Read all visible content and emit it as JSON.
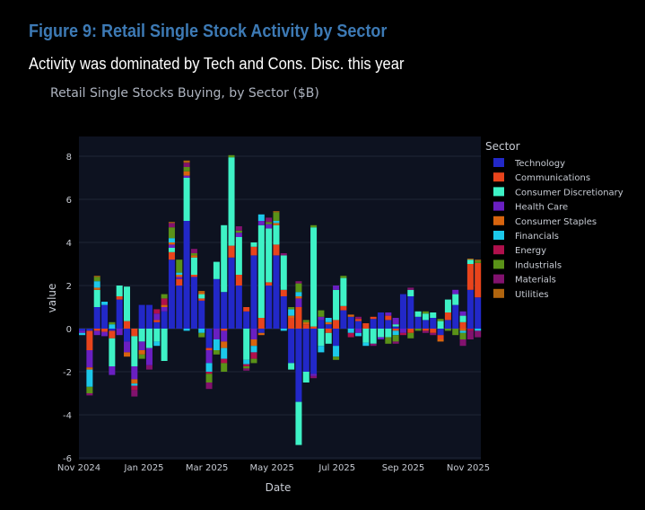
{
  "figure_title": "Figure 9: Retail Single Stock Activity by Sector",
  "figure_subtitle": "Activity was dominated by Tech and Cons. Disc. this year",
  "chart_data": {
    "type": "bar",
    "barmode": "relative",
    "title": "Retail Single Stocks Buying, by Sector ($B)",
    "xlabel": "Date",
    "ylabel": "value",
    "ylim": [
      -6.1,
      8.9
    ],
    "yticks": [
      -6,
      -4,
      -2,
      0,
      2,
      4,
      6,
      8
    ],
    "xticks": [
      {
        "date": "2024-11-01",
        "label": "Nov 2024"
      },
      {
        "date": "2025-01-01",
        "label": "Jan 2025"
      },
      {
        "date": "2025-03-01",
        "label": "Mar 2025"
      },
      {
        "date": "2025-05-01",
        "label": "May 2025"
      },
      {
        "date": "2025-07-01",
        "label": "Jul 2025"
      },
      {
        "date": "2025-09-01",
        "label": "Sep 2025"
      },
      {
        "date": "2025-11-01",
        "label": "Nov 2025"
      }
    ],
    "x_start": "2024-11-04",
    "x_step_days": 7,
    "grid": true,
    "legend_title": "Sector",
    "legend_position": "right",
    "series": [
      {
        "name": "Technology",
        "color": "#2228c8",
        "values": [
          -0.1,
          -0.1,
          1.0,
          1.1,
          -0.1,
          1.35,
          -0.6,
          0,
          1.1,
          1.1,
          0.3,
          0.8,
          3.2,
          2.0,
          5.0,
          2.4,
          1.3,
          -0.9,
          2.3,
          1.7,
          3.3,
          2.0,
          0.8,
          3.4,
          -0.2,
          2.0,
          3.4,
          1.5,
          -1.6,
          -3.4,
          -2.0,
          -2.1,
          0.4,
          0.2,
          -0.8,
          0.85,
          0.55,
          0.35,
          0,
          0.45,
          0.75,
          0.4,
          0.1,
          1.6,
          1.5,
          0.55,
          0.4,
          0.5,
          -0.3,
          0.4,
          1.1,
          0,
          1.8,
          1.45
        ]
      },
      {
        "name": "Communications",
        "color": "#e8441c",
        "values": [
          0,
          -0.9,
          -0.1,
          -0.15,
          -0.35,
          0.15,
          0.35,
          -0.35,
          0,
          0,
          0.1,
          0,
          0.35,
          0.3,
          0,
          0.1,
          0.1,
          -0.1,
          0,
          -0.1,
          0.55,
          0.5,
          0.2,
          0.4,
          0.5,
          0.15,
          0.5,
          0.3,
          0.5,
          1.0,
          0.2,
          0.1,
          0,
          -0.2,
          0.4,
          0.2,
          0,
          0.1,
          0.25,
          0.1,
          0,
          0.2,
          -0.1,
          0,
          -0.2,
          0,
          -0.1,
          -0.2,
          -0.2,
          0.35,
          0,
          0.3,
          1.2,
          1.6
        ]
      },
      {
        "name": "Consumer Discretionary",
        "color": "#3ef2c6",
        "values": [
          0,
          0,
          0.8,
          0,
          -1.3,
          0.5,
          1.6,
          -1.4,
          -0.6,
          -0.9,
          -0.6,
          -1.5,
          0.2,
          0,
          2.0,
          0.8,
          0.2,
          0,
          0.8,
          3.1,
          4.1,
          1.75,
          -1.45,
          0.2,
          4.3,
          2.5,
          0.9,
          1.6,
          -0.3,
          -2.0,
          -0.5,
          4.6,
          -0.8,
          -0.5,
          1.4,
          1.3,
          0,
          0,
          -0.65,
          -0.7,
          -0.4,
          -0.4,
          0.1,
          0,
          0.3,
          0.25,
          0.3,
          0.25,
          0.35,
          0.6,
          0.5,
          0.3,
          0.2,
          0
        ]
      },
      {
        "name": "Health Care",
        "color": "#6a1fc2",
        "values": [
          -0.1,
          -0.8,
          -0.2,
          -0.2,
          -0.4,
          -0.3,
          -0.5,
          -0.6,
          -0.4,
          -0.8,
          0.3,
          0.2,
          0.15,
          0.1,
          0.1,
          0,
          0,
          -0.6,
          -0.5,
          -0.5,
          0,
          0.2,
          0,
          -0.5,
          0.2,
          0.2,
          0,
          0,
          0,
          0.4,
          0,
          -0.1,
          0.15,
          0,
          0.2,
          0,
          0,
          -0.2,
          0,
          0,
          -0.1,
          0.15,
          0.3,
          -0.2,
          0,
          0,
          0,
          0,
          0,
          0,
          0.2,
          0.2,
          0,
          0
        ]
      },
      {
        "name": "Consumer Staples",
        "color": "#d8640e",
        "values": [
          0,
          -0.1,
          0.1,
          0,
          0,
          0,
          -0.2,
          -0.2,
          -0.2,
          0,
          0,
          0.1,
          0.1,
          0.1,
          0.2,
          0.1,
          0.1,
          0,
          0,
          -0.3,
          0,
          0,
          0,
          -0.3,
          -0.1,
          0,
          0.1,
          0,
          0.1,
          0.1,
          0.1,
          0,
          0,
          0.1,
          0,
          0,
          0.1,
          0,
          0,
          0,
          0,
          0,
          0,
          0,
          0,
          0,
          0,
          0,
          -0.1,
          0,
          0,
          -0.1,
          0,
          0
        ]
      },
      {
        "name": "Financials",
        "color": "#1cc8ea",
        "values": [
          -0.1,
          -0.8,
          0.3,
          0.15,
          0.2,
          0,
          0,
          -0.1,
          0,
          0,
          -0.2,
          0,
          0.2,
          0.1,
          -0.1,
          0,
          -0.2,
          -0.4,
          -0.5,
          -0.5,
          0,
          0,
          -0.2,
          -0.3,
          0.3,
          0,
          0.1,
          -0.1,
          0.3,
          0.2,
          0,
          0,
          -0.3,
          0.2,
          -0.5,
          0,
          -0.2,
          -0.15,
          -0.15,
          0,
          0,
          0,
          -0.2,
          0,
          0,
          0,
          0,
          0,
          0,
          0,
          0,
          -0.1,
          0,
          -0.1
        ]
      },
      {
        "name": "Energy",
        "color": "#b0104c",
        "values": [
          0,
          0,
          0,
          0,
          0,
          0,
          0,
          -0.2,
          0,
          0,
          0.2,
          0.3,
          0,
          0,
          0,
          0,
          0,
          -0.1,
          0,
          -0.2,
          0,
          0,
          -0.1,
          -0.3,
          0,
          0,
          0,
          0,
          0,
          0,
          0,
          0,
          0,
          0,
          0,
          0,
          -0.2,
          0,
          0,
          0,
          0,
          0,
          0,
          -0.1,
          0,
          0,
          0,
          0,
          0,
          0,
          0,
          0,
          -0.1,
          0
        ]
      },
      {
        "name": "Industrials",
        "color": "#5a9218",
        "values": [
          0,
          -0.3,
          0.2,
          0,
          0.1,
          0,
          0,
          0,
          -0.2,
          0,
          0,
          0.2,
          0.5,
          0.6,
          0.2,
          0.1,
          -0.2,
          -0.4,
          -0.2,
          -0.4,
          0.1,
          0.1,
          -0.1,
          -0.2,
          0,
          0.1,
          0.4,
          0,
          0.1,
          0.4,
          0.1,
          0.1,
          0.3,
          0,
          -0.15,
          0.1,
          0,
          0,
          0,
          0,
          0,
          -0.3,
          -0.3,
          0,
          -0.25,
          -0.1,
          0.1,
          0,
          0.1,
          -0.1,
          -0.3,
          -0.3,
          0,
          0.1
        ]
      },
      {
        "name": "Materials",
        "color": "#82126e",
        "values": [
          0,
          -0.1,
          0,
          0,
          0,
          0,
          0,
          -0.3,
          0,
          -0.2,
          0,
          0,
          0.2,
          0,
          0.2,
          0.2,
          0,
          -0.3,
          0,
          0,
          0,
          0.2,
          -0.1,
          0,
          0,
          0.2,
          0,
          0.1,
          0,
          0.1,
          0,
          -0.1,
          0,
          0,
          0,
          0,
          0,
          0.1,
          0,
          -0.1,
          0,
          0,
          -0.1,
          0,
          0.1,
          0,
          -0.1,
          -0.1,
          0,
          0,
          0,
          -0.3,
          -0.4,
          -0.3
        ]
      },
      {
        "name": "Utilities",
        "color": "#b0640e",
        "values": [
          0,
          0,
          0.05,
          0,
          0,
          0,
          0,
          0,
          0,
          0,
          0,
          0,
          0.05,
          0,
          0.1,
          0,
          0.05,
          0,
          0,
          0,
          0,
          0,
          0,
          0,
          0,
          0,
          0.05,
          0,
          0,
          0,
          0,
          0,
          0,
          0,
          0,
          0,
          0,
          0,
          0,
          0,
          0,
          0,
          0,
          0,
          0,
          0,
          0,
          0,
          0,
          0,
          0,
          0,
          0.05,
          0.05
        ]
      }
    ]
  }
}
